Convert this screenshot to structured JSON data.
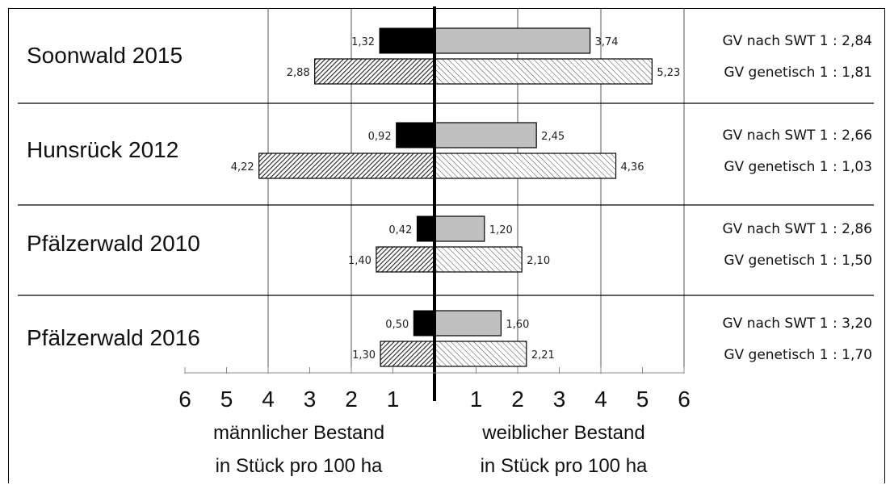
{
  "chart_data": {
    "type": "bar",
    "orientation": "horizontal-diverging",
    "groups": [
      {
        "label": "Soonwald 2015",
        "male_swt": 1.32,
        "female_swt": 3.74,
        "male_genetic": 2.88,
        "female_genetic": 5.23,
        "male_swt_label": "1,32",
        "female_swt_label": "3,74",
        "male_genetic_label": "2,88",
        "female_genetic_label": "5,23",
        "ratio_swt": "GV nach SWT  1 : 2,84",
        "ratio_genetic": "GV genetisch  1 : 1,81"
      },
      {
        "label": "Hunsrück 2012",
        "male_swt": 0.92,
        "female_swt": 2.45,
        "male_genetic": 4.22,
        "female_genetic": 4.36,
        "male_swt_label": "0,92",
        "female_swt_label": "2,45",
        "male_genetic_label": "4,22",
        "female_genetic_label": "4,36",
        "ratio_swt": "GV nach SWT 1 : 2,66",
        "ratio_genetic": "GV genetisch  1 : 1,03"
      },
      {
        "label": "Pfälzerwald 2010",
        "male_swt": 0.42,
        "female_swt": 1.2,
        "male_genetic": 1.4,
        "female_genetic": 2.1,
        "male_swt_label": "0,42",
        "female_swt_label": "1,20",
        "male_genetic_label": "1,40",
        "female_genetic_label": "2,10",
        "ratio_swt": "GV nach SWT 1 : 2,86",
        "ratio_genetic": "GV genetisch 1 : 1,50"
      },
      {
        "label": "Pfälzerwald 2016",
        "male_swt": 0.5,
        "female_swt": 1.6,
        "male_genetic": 1.3,
        "female_genetic": 2.21,
        "male_swt_label": "0,50",
        "female_swt_label": "1,60",
        "male_genetic_label": "1,30",
        "female_genetic_label": "2,21",
        "ratio_swt": "GV nach SWT 1 : 3,20",
        "ratio_genetic": "GV genetisch 1 : 1,70"
      }
    ],
    "x_ticks_left": [
      "6",
      "5",
      "4",
      "3",
      "2",
      "1"
    ],
    "x_ticks_right": [
      "1",
      "2",
      "3",
      "4",
      "5",
      "6"
    ],
    "xlim": [
      -6,
      6
    ],
    "gridlines": [
      -4,
      -2,
      2,
      4,
      6
    ],
    "xlabel_left_line1": "männlicher Bestand",
    "xlabel_left_line2": "in Stück pro 100 ha",
    "xlabel_right_line1": "weiblicher Bestand",
    "xlabel_right_line2": "in Stück pro 100 ha",
    "colors": {
      "male_swt": "#000000",
      "female_swt": "#c0c0c0",
      "genetic_hatch": "#333333"
    }
  }
}
